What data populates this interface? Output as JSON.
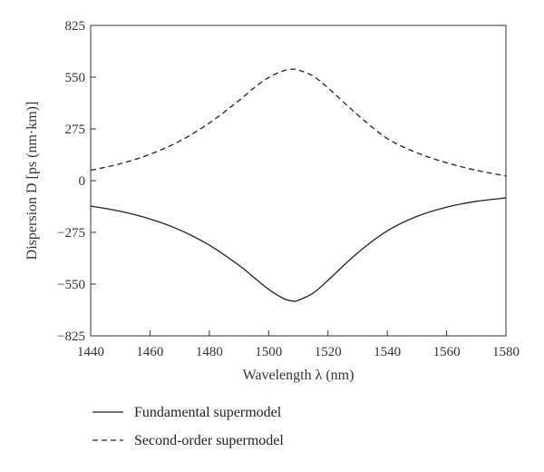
{
  "chart_data": {
    "type": "line",
    "title": "",
    "xlabel": "Wavelength λ (nm)",
    "ylabel": "Dispersion D [ps (nm·km)]",
    "xlim": [
      1440,
      1580
    ],
    "ylim": [
      -825,
      825
    ],
    "xticks": [
      1440,
      1460,
      1480,
      1500,
      1520,
      1540,
      1560,
      1580
    ],
    "yticks": [
      825,
      550,
      275,
      0,
      -275,
      -550,
      -825
    ],
    "ytick_labels": [
      "825",
      "550",
      "275",
      "0",
      "−275",
      "−550",
      "−825"
    ],
    "grid": false,
    "legend_position": "bottom",
    "series": [
      {
        "name": "Fundamental supermodel",
        "style": "solid",
        "color": "#222222",
        "x": [
          1440,
          1450,
          1460,
          1470,
          1480,
          1490,
          1495,
          1500,
          1505,
          1508,
          1510,
          1515,
          1520,
          1530,
          1540,
          1550,
          1560,
          1570,
          1580
        ],
        "y": [
          -135,
          -163,
          -204,
          -262,
          -343,
          -450,
          -514,
          -578,
          -626,
          -640,
          -636,
          -598,
          -530,
          -384,
          -267,
          -190,
          -141,
          -110,
          -92
        ]
      },
      {
        "name": "Second-order supermodel",
        "style": "dashed",
        "color": "#222222",
        "x": [
          1440,
          1450,
          1460,
          1470,
          1480,
          1490,
          1495,
          1500,
          1505,
          1508,
          1510,
          1515,
          1520,
          1530,
          1540,
          1550,
          1560,
          1570,
          1580
        ],
        "y": [
          55,
          90,
          140,
          210,
          306,
          426,
          492,
          548,
          584,
          592,
          588,
          556,
          493,
          350,
          224,
          148,
          95,
          55,
          25
        ]
      }
    ]
  }
}
